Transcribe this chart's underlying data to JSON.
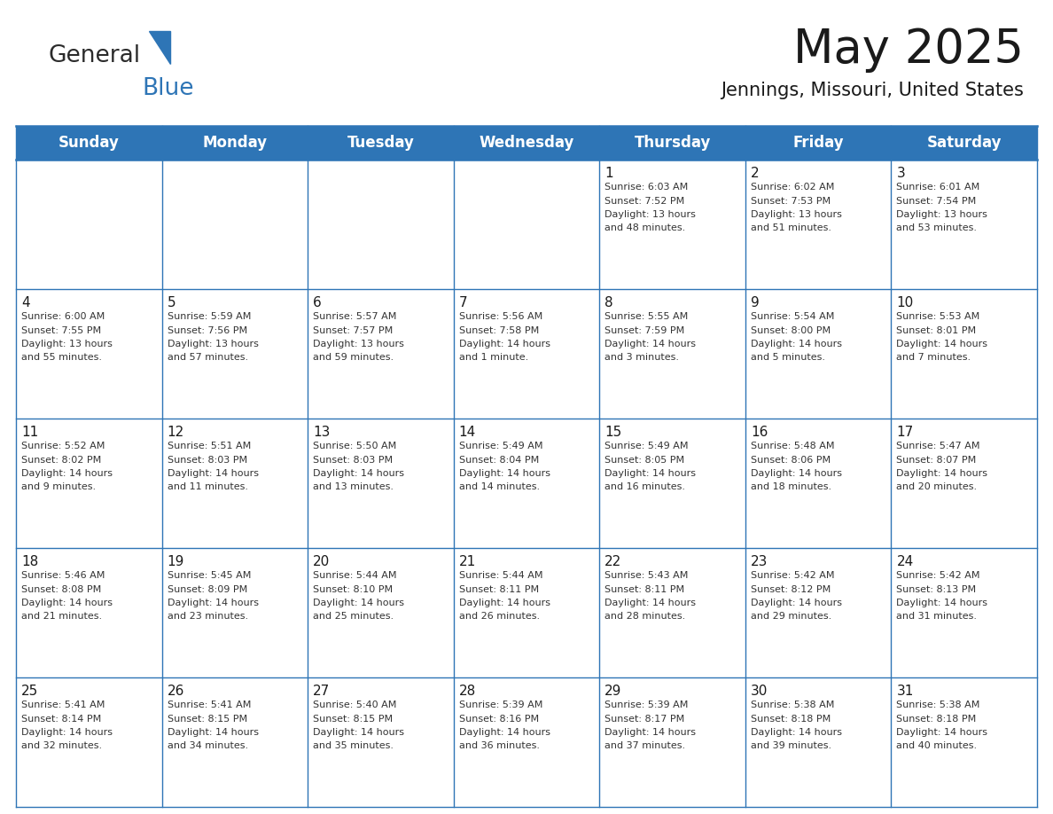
{
  "title": "May 2025",
  "subtitle": "Jennings, Missouri, United States",
  "header_bg": "#2E75B6",
  "header_text_color": "#FFFFFF",
  "cell_bg": "#FFFFFF",
  "border_color": "#2E75B6",
  "grid_line_color": "#2E75B6",
  "days_of_week": [
    "Sunday",
    "Monday",
    "Tuesday",
    "Wednesday",
    "Thursday",
    "Friday",
    "Saturday"
  ],
  "weeks": [
    [
      {
        "day": "",
        "text": ""
      },
      {
        "day": "",
        "text": ""
      },
      {
        "day": "",
        "text": ""
      },
      {
        "day": "",
        "text": ""
      },
      {
        "day": "1",
        "text": "Sunrise: 6:03 AM\nSunset: 7:52 PM\nDaylight: 13 hours\nand 48 minutes."
      },
      {
        "day": "2",
        "text": "Sunrise: 6:02 AM\nSunset: 7:53 PM\nDaylight: 13 hours\nand 51 minutes."
      },
      {
        "day": "3",
        "text": "Sunrise: 6:01 AM\nSunset: 7:54 PM\nDaylight: 13 hours\nand 53 minutes."
      }
    ],
    [
      {
        "day": "4",
        "text": "Sunrise: 6:00 AM\nSunset: 7:55 PM\nDaylight: 13 hours\nand 55 minutes."
      },
      {
        "day": "5",
        "text": "Sunrise: 5:59 AM\nSunset: 7:56 PM\nDaylight: 13 hours\nand 57 minutes."
      },
      {
        "day": "6",
        "text": "Sunrise: 5:57 AM\nSunset: 7:57 PM\nDaylight: 13 hours\nand 59 minutes."
      },
      {
        "day": "7",
        "text": "Sunrise: 5:56 AM\nSunset: 7:58 PM\nDaylight: 14 hours\nand 1 minute."
      },
      {
        "day": "8",
        "text": "Sunrise: 5:55 AM\nSunset: 7:59 PM\nDaylight: 14 hours\nand 3 minutes."
      },
      {
        "day": "9",
        "text": "Sunrise: 5:54 AM\nSunset: 8:00 PM\nDaylight: 14 hours\nand 5 minutes."
      },
      {
        "day": "10",
        "text": "Sunrise: 5:53 AM\nSunset: 8:01 PM\nDaylight: 14 hours\nand 7 minutes."
      }
    ],
    [
      {
        "day": "11",
        "text": "Sunrise: 5:52 AM\nSunset: 8:02 PM\nDaylight: 14 hours\nand 9 minutes."
      },
      {
        "day": "12",
        "text": "Sunrise: 5:51 AM\nSunset: 8:03 PM\nDaylight: 14 hours\nand 11 minutes."
      },
      {
        "day": "13",
        "text": "Sunrise: 5:50 AM\nSunset: 8:03 PM\nDaylight: 14 hours\nand 13 minutes."
      },
      {
        "day": "14",
        "text": "Sunrise: 5:49 AM\nSunset: 8:04 PM\nDaylight: 14 hours\nand 14 minutes."
      },
      {
        "day": "15",
        "text": "Sunrise: 5:49 AM\nSunset: 8:05 PM\nDaylight: 14 hours\nand 16 minutes."
      },
      {
        "day": "16",
        "text": "Sunrise: 5:48 AM\nSunset: 8:06 PM\nDaylight: 14 hours\nand 18 minutes."
      },
      {
        "day": "17",
        "text": "Sunrise: 5:47 AM\nSunset: 8:07 PM\nDaylight: 14 hours\nand 20 minutes."
      }
    ],
    [
      {
        "day": "18",
        "text": "Sunrise: 5:46 AM\nSunset: 8:08 PM\nDaylight: 14 hours\nand 21 minutes."
      },
      {
        "day": "19",
        "text": "Sunrise: 5:45 AM\nSunset: 8:09 PM\nDaylight: 14 hours\nand 23 minutes."
      },
      {
        "day": "20",
        "text": "Sunrise: 5:44 AM\nSunset: 8:10 PM\nDaylight: 14 hours\nand 25 minutes."
      },
      {
        "day": "21",
        "text": "Sunrise: 5:44 AM\nSunset: 8:11 PM\nDaylight: 14 hours\nand 26 minutes."
      },
      {
        "day": "22",
        "text": "Sunrise: 5:43 AM\nSunset: 8:11 PM\nDaylight: 14 hours\nand 28 minutes."
      },
      {
        "day": "23",
        "text": "Sunrise: 5:42 AM\nSunset: 8:12 PM\nDaylight: 14 hours\nand 29 minutes."
      },
      {
        "day": "24",
        "text": "Sunrise: 5:42 AM\nSunset: 8:13 PM\nDaylight: 14 hours\nand 31 minutes."
      }
    ],
    [
      {
        "day": "25",
        "text": "Sunrise: 5:41 AM\nSunset: 8:14 PM\nDaylight: 14 hours\nand 32 minutes."
      },
      {
        "day": "26",
        "text": "Sunrise: 5:41 AM\nSunset: 8:15 PM\nDaylight: 14 hours\nand 34 minutes."
      },
      {
        "day": "27",
        "text": "Sunrise: 5:40 AM\nSunset: 8:15 PM\nDaylight: 14 hours\nand 35 minutes."
      },
      {
        "day": "28",
        "text": "Sunrise: 5:39 AM\nSunset: 8:16 PM\nDaylight: 14 hours\nand 36 minutes."
      },
      {
        "day": "29",
        "text": "Sunrise: 5:39 AM\nSunset: 8:17 PM\nDaylight: 14 hours\nand 37 minutes."
      },
      {
        "day": "30",
        "text": "Sunrise: 5:38 AM\nSunset: 8:18 PM\nDaylight: 14 hours\nand 39 minutes."
      },
      {
        "day": "31",
        "text": "Sunrise: 5:38 AM\nSunset: 8:18 PM\nDaylight: 14 hours\nand 40 minutes."
      }
    ]
  ],
  "logo_general_color": "#2B2B2B",
  "logo_blue_color": "#2E75B6",
  "text_color": "#1a1a1a",
  "cell_text_color": "#333333",
  "title_fontsize": 38,
  "subtitle_fontsize": 15,
  "dow_fontsize": 12,
  "day_num_fontsize": 11,
  "cell_text_fontsize": 8.0
}
